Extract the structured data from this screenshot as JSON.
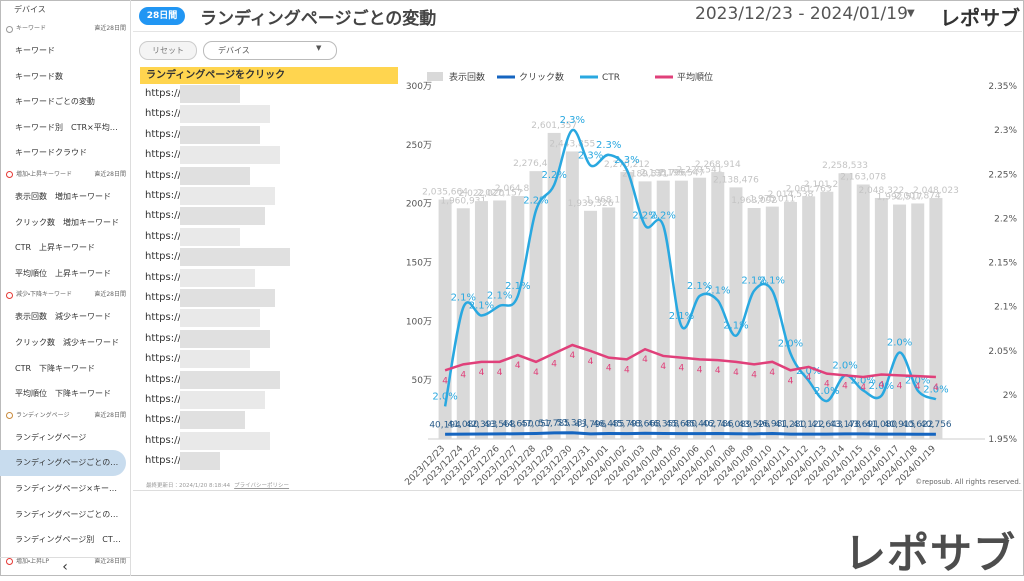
{
  "sidebar": {
    "top": "デバイス",
    "sections": [
      {
        "title": "キーワード",
        "period": "直近28日間",
        "items": [
          "キーワード",
          "キーワード数",
          "キーワードごとの変動",
          "キーワード別　CTR×平均…",
          "キーワードクラウド"
        ]
      },
      {
        "title": "増加・上昇キーワード",
        "period": "直近28日間",
        "items": [
          "表示回数　増加キーワード",
          "クリック数　増加キーワード",
          "CTR　上昇キーワード",
          "平均順位　上昇キーワード"
        ]
      },
      {
        "title": "減少・下降キーワード",
        "period": "直近28日間",
        "items": [
          "表示回数　減少キーワード",
          "クリック数　減少キーワード",
          "CTR　下降キーワード",
          "平均順位　下降キーワード"
        ]
      },
      {
        "title": "ランディングページ",
        "period": "直近28日間",
        "items": [
          "ランディングページ",
          "ランディングページごとの…",
          "ランディングページ×キー…",
          "ランディングページごとの…",
          "ランディングページ別　CT…"
        ]
      },
      {
        "title": "増加・上昇LP",
        "period": "直近28日間",
        "items": []
      }
    ],
    "collapse": "‹"
  },
  "header": {
    "badge": "28日間",
    "title": "ランディングページごとの変動",
    "date_range": "2023/12/23 - 2024/01/19",
    "logo": "レポサブ"
  },
  "controls": {
    "reset": "リセット",
    "device": "デバイス"
  },
  "table": {
    "header": "ランディングページをクリック",
    "rows": [
      "https://",
      "https://",
      "https://",
      "https://",
      "https://",
      "https://",
      "https://",
      "https://",
      "https://",
      "https://",
      "https://",
      "https://",
      "https://",
      "https://",
      "https://",
      "https://",
      "https://",
      "https://",
      "https://"
    ]
  },
  "table_footer": {
    "updated": "最終更新日：2024/1/20 8:18:44",
    "privacy": "プライバシーポリシー"
  },
  "chart_data": {
    "type": "combo",
    "categories": [
      "2023/12/23",
      "2023/12/24",
      "2023/12/25",
      "2023/12/26",
      "2023/12/27",
      "2023/12/28",
      "2023/12/29",
      "2023/12/30",
      "2023/12/31",
      "2024/01/01",
      "2024/01/02",
      "2024/01/03",
      "2024/01/04",
      "2024/01/05",
      "2024/01/06",
      "2024/01/07",
      "2024/01/08",
      "2024/01/09",
      "2024/01/10",
      "2024/01/11",
      "2024/01/12",
      "2024/01/13",
      "2024/01/14",
      "2024/01/15",
      "2024/01/16",
      "2024/01/17",
      "2024/01/18",
      "2024/01/19"
    ],
    "series": [
      {
        "name": "表示回数",
        "type": "bar",
        "color": "#d9d9d9",
        "values": [
          2035664,
          1960931,
          2022020,
          2027157,
          2064848,
          2276412,
          2601357,
          2443855,
          1939326,
          1968143,
          2270212,
          2189531,
          2195706,
          2195547,
          2220541,
          2268914,
          2138476,
          1963092,
          1975011,
          2014538,
          2061763,
          2101218,
          2258533,
          2163078,
          2048322,
          1992517,
          2001874,
          2048023
        ],
        "value_labels": [
          "2,035,664",
          "1,960,931",
          "2,022,020",
          "2,027,157",
          "2,064,848",
          "2,276,412",
          "2,601,357",
          "2,443,855",
          "1,939,326",
          "1,968,143",
          "2,270,212",
          "2,189,531",
          "2,195,706",
          "2,195,547",
          "2,220,541",
          "2,268,914",
          "2,138,476",
          "1,963,092",
          "1,975,011",
          "2,014,538",
          "2,061,763",
          "2,101,218",
          "2,258,533",
          "2,163,078",
          "2,048,322",
          "1,992,517",
          "2,001,874",
          "2,048,023"
        ]
      },
      {
        "name": "クリック数",
        "type": "line",
        "color": "#1565c0",
        "values": [
          40194,
          41080,
          42393,
          43568,
          44650,
          47057,
          51785,
          53381,
          43796,
          46485,
          45793,
          48668,
          46358,
          45680,
          45402,
          46786,
          44089,
          43526,
          46981,
          41280,
          41122,
          41643,
          43178,
          43691,
          41080,
          40915,
          40622,
          40756
        ],
        "value_labels": [
          "40,194",
          "41,080",
          "42,393",
          "43,568",
          "44,650",
          "47,057",
          "51,785",
          "53,381",
          "43,796",
          "46,485",
          "45,793",
          "48,668",
          "46,358",
          "45,680",
          "45,402",
          "46,786",
          "44,089",
          "43,526",
          "46,981",
          "41,280",
          "41,122",
          "41,643",
          "43,178",
          "43,691",
          "41,080",
          "40,915",
          "40,622",
          "40,756"
        ]
      },
      {
        "name": "CTR",
        "type": "line",
        "axis": "y2",
        "color": "#29a8e0",
        "smooth": true,
        "values": [
          1.987,
          2.099,
          2.09,
          2.101,
          2.112,
          2.209,
          2.238,
          2.3,
          2.26,
          2.272,
          2.255,
          2.192,
          2.192,
          2.078,
          2.112,
          2.107,
          2.067,
          2.118,
          2.118,
          2.047,
          2.016,
          1.993,
          2.022,
          2.005,
          1.999,
          2.048,
          2.005,
          1.995
        ],
        "value_labels": [
          "2.0%",
          "2.1%",
          "2.1%",
          "2.1%",
          "2.1%",
          "2.2%",
          "2.2%",
          "2.3%",
          "2.3%",
          "2.3%",
          "2.3%",
          "2.2%",
          "2.2%",
          "2.1%",
          "2.1%",
          "2.1%",
          "2.1%",
          "2.1%",
          "2.1%",
          "2.0%",
          "2.0%",
          "2.0%",
          "2.0%",
          "2.0%",
          "2.0%",
          "2.0%",
          "2.0%",
          "2.0%"
        ]
      },
      {
        "name": "平均順位",
        "type": "line",
        "axis": "y3",
        "color": "#e0407a",
        "values": [
          4.4,
          4.33,
          4.3,
          4.3,
          4.22,
          4.3,
          4.2,
          4.1,
          4.17,
          4.25,
          4.27,
          4.15,
          4.23,
          4.25,
          4.27,
          4.28,
          4.3,
          4.33,
          4.3,
          4.4,
          4.36,
          4.44,
          4.46,
          4.48,
          4.45,
          4.46,
          4.47,
          4.48
        ],
        "value_labels": [
          "4",
          "4",
          "4",
          "4",
          "4",
          "4",
          "4",
          "4",
          "4",
          "4",
          "4",
          "4",
          "4",
          "4",
          "4",
          "4",
          "4",
          "4",
          "4",
          "4",
          "4",
          "4",
          "4",
          "4",
          "4",
          "4",
          "4",
          "4"
        ]
      }
    ],
    "ylim": [
      0,
      3000000
    ],
    "yticks": [
      {
        "value": 500000,
        "label": "50万"
      },
      {
        "value": 1000000,
        "label": "100万"
      },
      {
        "value": 1500000,
        "label": "150万"
      },
      {
        "value": 2000000,
        "label": "200万"
      },
      {
        "value": 2500000,
        "label": "250万"
      },
      {
        "value": 3000000,
        "label": "300万"
      }
    ],
    "y2lim": [
      1.95,
      2.35
    ],
    "y2ticks": [
      {
        "value": 1.95,
        "label": "1.95%"
      },
      {
        "value": 2,
        "label": "2%"
      },
      {
        "value": 2.05,
        "label": "2.05%"
      },
      {
        "value": 2.1,
        "label": "2.1%"
      },
      {
        "value": 2.15,
        "label": "2.15%"
      },
      {
        "value": 2.2,
        "label": "2.2%"
      },
      {
        "value": 2.25,
        "label": "2.25%"
      },
      {
        "value": 2.3,
        "label": "2.3%"
      },
      {
        "value": 2.35,
        "label": "2.35%"
      }
    ],
    "grid": false,
    "legend": "top"
  },
  "copyright": "©reposub. All rights reserved.",
  "watermark_logo": "レポサブ"
}
